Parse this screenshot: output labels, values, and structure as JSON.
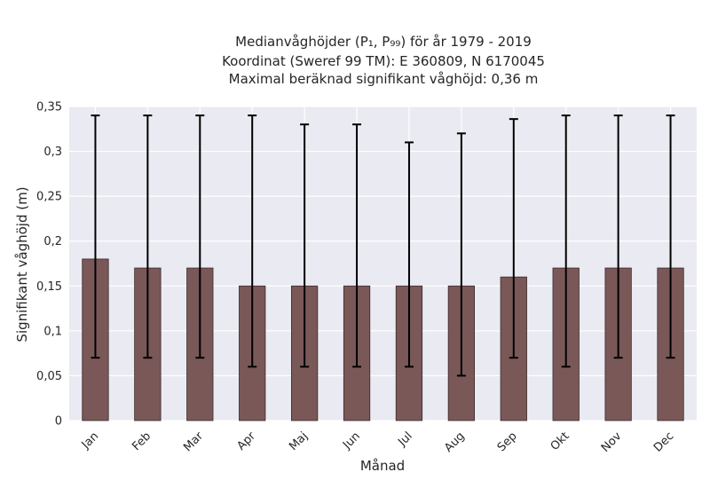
{
  "chart_data": {
    "type": "bar",
    "title_lines": [
      "Medianvåghöjder (P₁, P₉₉) för år 1979 - 2019",
      "Koordinat (Sweref 99 TM): E 360809, N 6170045",
      "Maximal beräknad signifikant våghöjd: 0,36 m"
    ],
    "xlabel": "Månad",
    "ylabel": "Signifikant våghöjd (m)",
    "categories": [
      "Jan",
      "Feb",
      "Mar",
      "Apr",
      "Maj",
      "Jun",
      "Jul",
      "Aug",
      "Sep",
      "Okt",
      "Nov",
      "Dec"
    ],
    "values": [
      0.18,
      0.17,
      0.17,
      0.15,
      0.15,
      0.15,
      0.15,
      0.15,
      0.16,
      0.17,
      0.17,
      0.17
    ],
    "error_low": [
      0.07,
      0.07,
      0.07,
      0.06,
      0.06,
      0.06,
      0.06,
      0.05,
      0.07,
      0.06,
      0.07,
      0.07
    ],
    "error_high": [
      0.34,
      0.34,
      0.34,
      0.34,
      0.33,
      0.33,
      0.31,
      0.32,
      0.336,
      0.34,
      0.34,
      0.34
    ],
    "ylim": [
      0,
      0.35
    ],
    "yticks": [
      0,
      0.05,
      0.1,
      0.15,
      0.2,
      0.25,
      0.3,
      0.35
    ],
    "ytick_labels": [
      "0",
      "0,05",
      "0,1",
      "0,15",
      "0,2",
      "0,25",
      "0,3",
      "0,35"
    ],
    "grid": true,
    "colors": {
      "bar": "#7a5858",
      "bar_edge": "#3a2a2a",
      "error_bar": "#000000",
      "plot_background": "#eaeaf2",
      "grid": "#ffffff"
    }
  }
}
